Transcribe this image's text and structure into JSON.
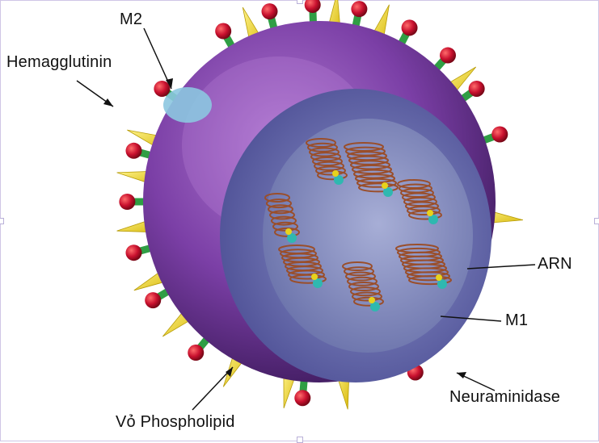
{
  "labels": {
    "m2": "M2",
    "hemagglutinin": "Hemagglutinin",
    "arn": "ARN",
    "m1": "M1",
    "neuraminidase": "Neuraminidase",
    "phospholipid": "Vỏ Phospholipid"
  },
  "colors": {
    "envelope_purple": "#7b3fa6",
    "inner_layer": "#5e5fa6",
    "core": "#7d88b8",
    "spike_yellow": "#f2de1e",
    "knob_red": "#c8102e",
    "stalk_green": "#2f9e44",
    "rna_brown": "#9a4e2a"
  }
}
